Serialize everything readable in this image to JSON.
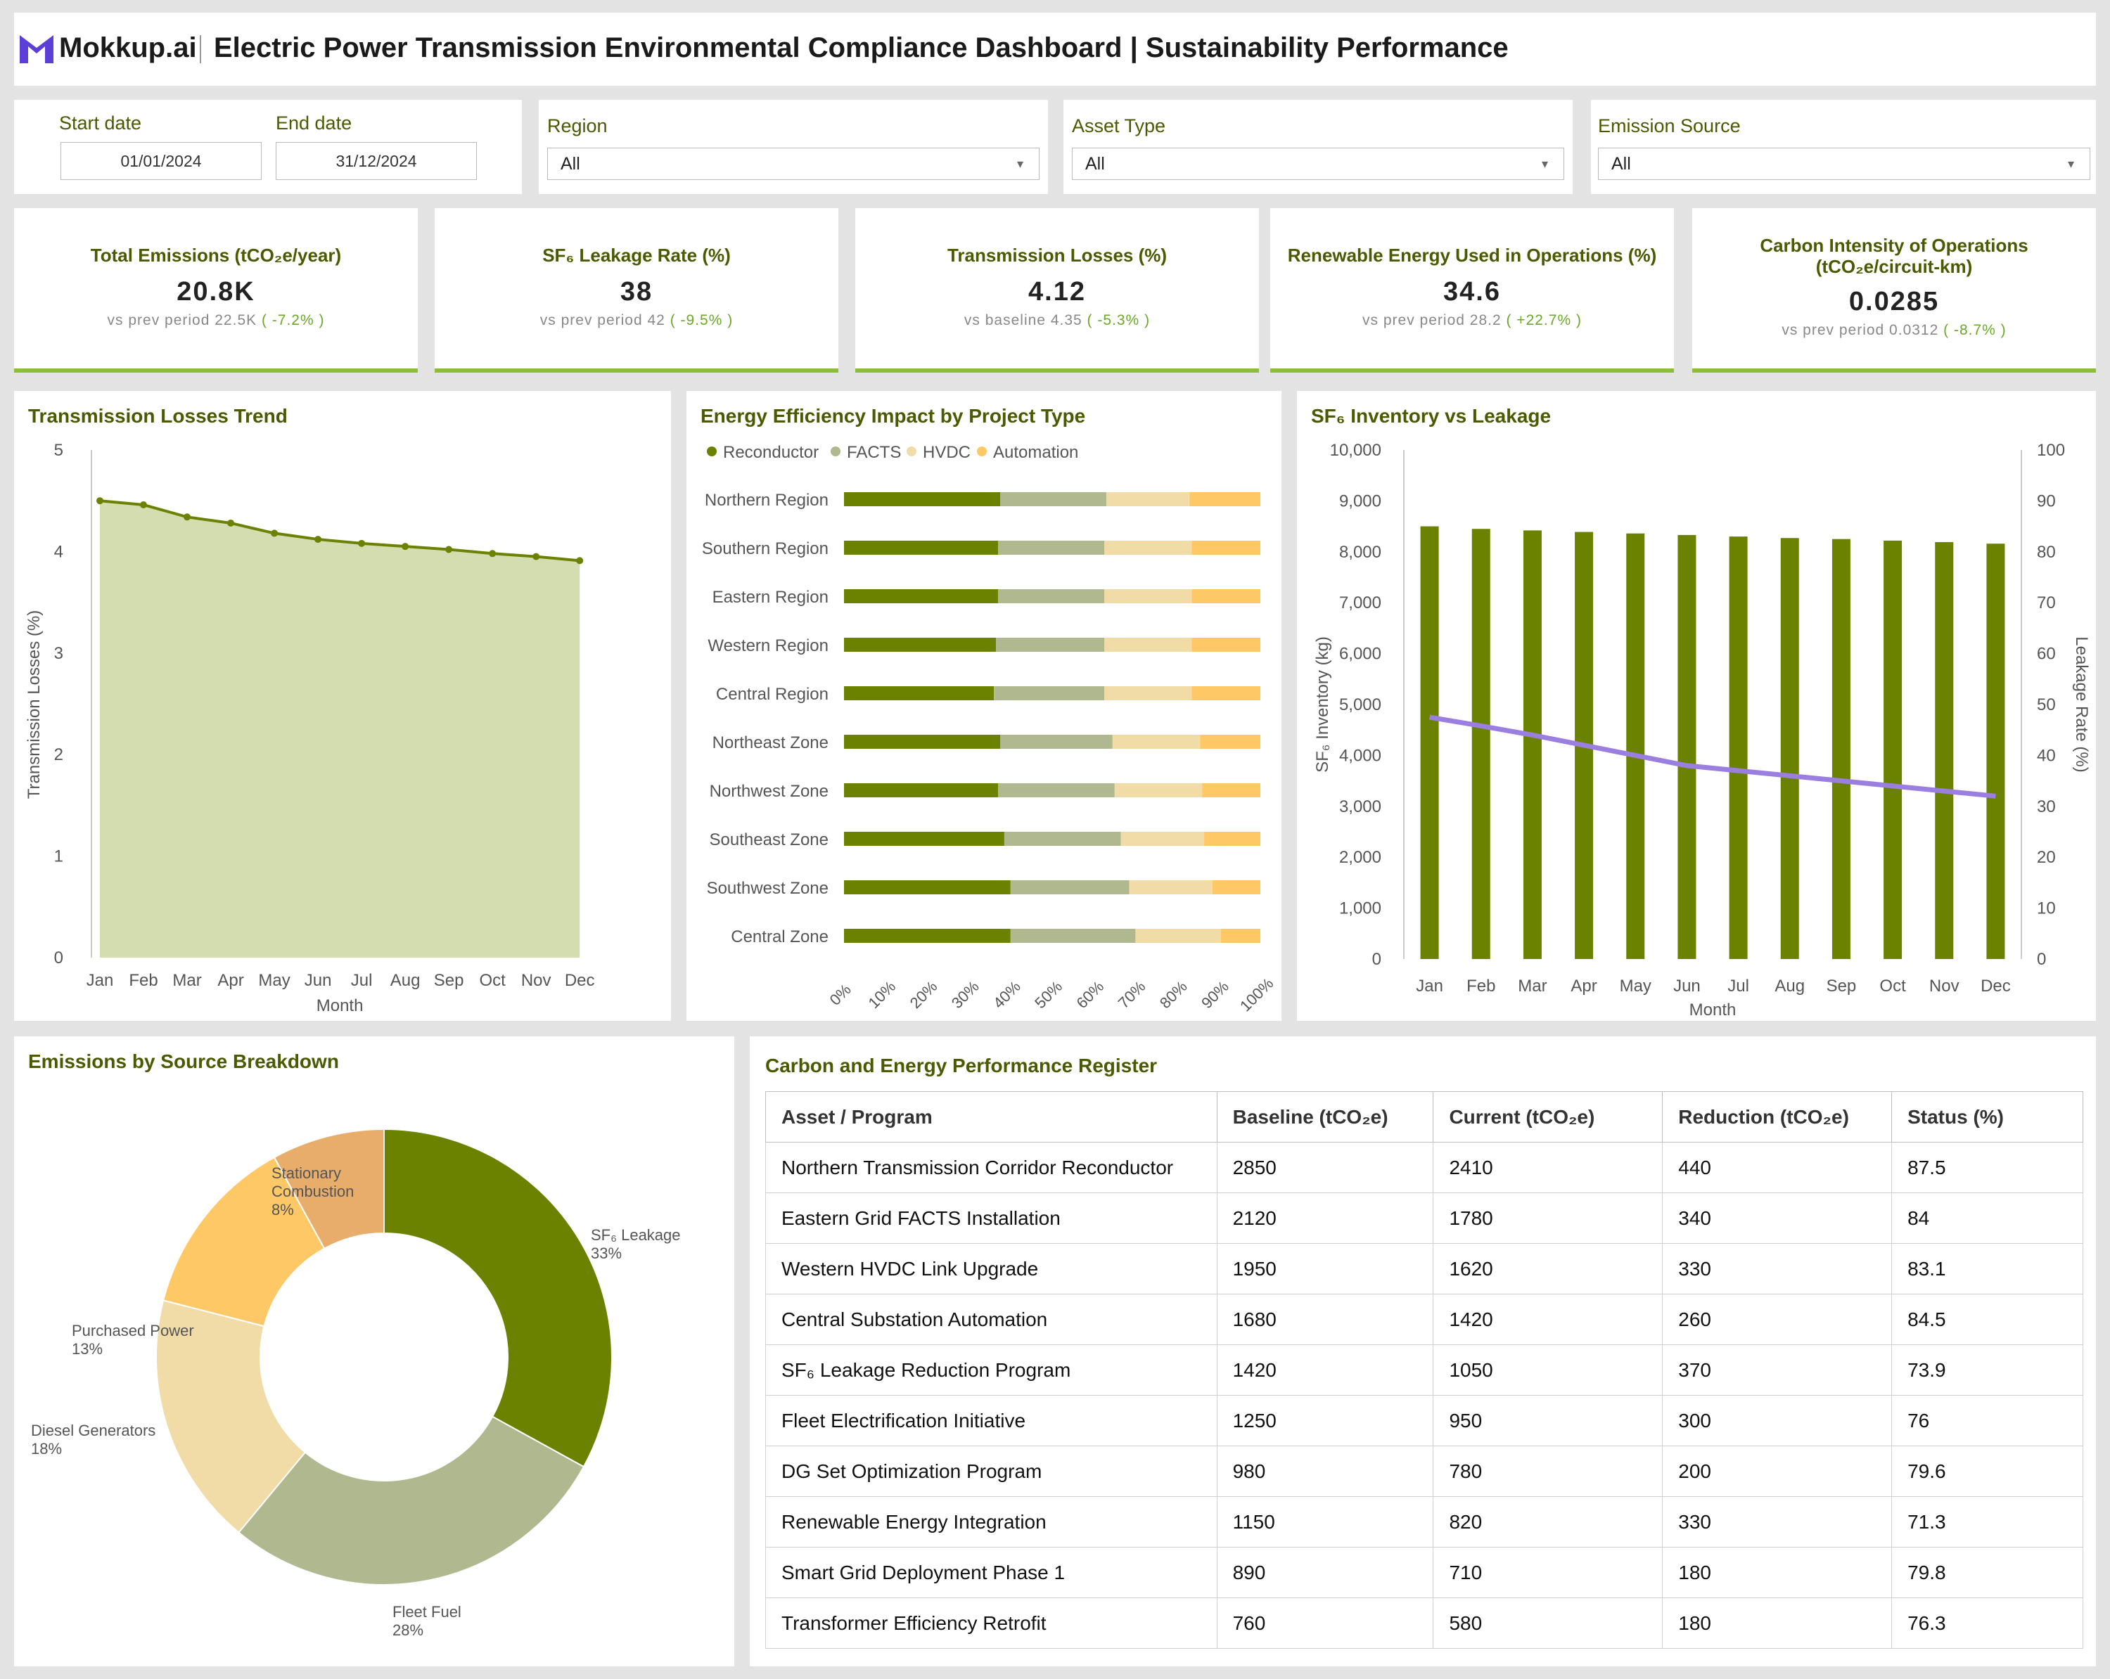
{
  "header": {
    "logo_text": "Mokkup.ai",
    "title": "Electric Power Transmission Environmental Compliance Dashboard | Sustainability Performance"
  },
  "filters": {
    "start_date_label": "Start date",
    "start_date": "01/01/2024",
    "end_date_label": "End date",
    "end_date": "31/12/2024",
    "region_label": "Region",
    "region_value": "All",
    "asset_label": "Asset Type",
    "asset_value": "All",
    "emission_label": "Emission Source",
    "emission_value": "All"
  },
  "kpis": [
    {
      "title": "Total Emissions (tCO₂e/year)",
      "value": "20.8K",
      "compare": "vs prev period 22.5K",
      "delta": "( -7.2% )"
    },
    {
      "title": "SF₆ Leakage Rate (%)",
      "value": "38",
      "compare": "vs prev period 42",
      "delta": "( -9.5% )"
    },
    {
      "title": "Transmission Losses (%)",
      "value": "4.12",
      "compare": "vs baseline 4.35",
      "delta": "( -5.3% )"
    },
    {
      "title": "Renewable Energy Used in Operations (%)",
      "value": "34.6",
      "compare": "vs prev period 28.2",
      "delta": "( +22.7% )"
    },
    {
      "title": "Carbon Intensity of Operations (tCO₂e/circuit-km)",
      "value": "0.0285",
      "compare": "vs prev period 0.0312",
      "delta": "( -8.7% )"
    }
  ],
  "colors": {
    "olive": "#6b8200",
    "sage": "#b0b890",
    "wheat": "#f1dca8",
    "amber": "#ffc866",
    "tan": "#e8ad6a",
    "area": "#d3ddb0",
    "purple": "#9b7fe0",
    "kpi_bar": "#8dbb3a"
  },
  "chart_data": [
    {
      "type": "area",
      "title": "Transmission Losses Trend",
      "xlabel": "Month",
      "ylabel": "Transmission Losses (%)",
      "categories": [
        "Jan",
        "Feb",
        "Mar",
        "Apr",
        "May",
        "Jun",
        "Jul",
        "Aug",
        "Sep",
        "Oct",
        "Nov",
        "Dec"
      ],
      "values": [
        4.5,
        4.46,
        4.34,
        4.28,
        4.18,
        4.12,
        4.08,
        4.05,
        4.02,
        3.98,
        3.95,
        3.91
      ],
      "ylim": [
        0,
        5
      ],
      "yticks": [
        "0",
        "1",
        "2",
        "3",
        "4",
        "5"
      ]
    },
    {
      "type": "bar",
      "orientation": "horizontal-stacked-100",
      "title": "Energy Efficiency Impact by Project Type",
      "categories": [
        "Northern Region",
        "Southern Region",
        "Eastern Region",
        "Western Region",
        "Central Region",
        "Northeast Zone",
        "Northwest Zone",
        "Southeast Zone",
        "Southwest Zone",
        "Central Zone"
      ],
      "series": [
        {
          "name": "Reconductor",
          "values": [
            37.5,
            37,
            37,
            36.5,
            36,
            37.5,
            37,
            38.5,
            40,
            40
          ]
        },
        {
          "name": "FACTS",
          "values": [
            25.5,
            25.5,
            25.5,
            26,
            26.5,
            27,
            28,
            28,
            28.5,
            30
          ]
        },
        {
          "name": "HVDC",
          "values": [
            20,
            21,
            21,
            21,
            21,
            21,
            21,
            20,
            20,
            20.5
          ]
        },
        {
          "name": "Automation",
          "values": [
            17,
            16.5,
            16.5,
            16.5,
            16.5,
            14.5,
            14,
            13.5,
            11.5,
            9.5
          ]
        }
      ],
      "xticks": [
        "0%",
        "10%",
        "20%",
        "30%",
        "40%",
        "50%",
        "60%",
        "70%",
        "80%",
        "90%",
        "100%"
      ],
      "legend": "top-left"
    },
    {
      "type": "bar",
      "title": "SF₆ Inventory vs Leakage",
      "xlabel": "Month",
      "ylabel": "SF₆ Inventory (kg)",
      "y2label": "Leakage Rate (%)",
      "categories": [
        "Jan",
        "Feb",
        "Mar",
        "Apr",
        "May",
        "Jun",
        "Jul",
        "Aug",
        "Sep",
        "Oct",
        "Nov",
        "Dec"
      ],
      "series": [
        {
          "type": "bar",
          "axis": "left",
          "values": [
            8500,
            8450,
            8420,
            8390,
            8360,
            8330,
            8300,
            8270,
            8250,
            8220,
            8190,
            8160
          ]
        },
        {
          "type": "line",
          "axis": "right",
          "values": [
            47.5,
            45.8,
            44,
            42,
            40,
            38,
            37,
            36,
            35,
            34,
            33,
            32
          ]
        }
      ],
      "ylim": [
        0,
        10000
      ],
      "y2lim": [
        0,
        100
      ],
      "yticks": [
        "0",
        "1,000",
        "2,000",
        "3,000",
        "4,000",
        "5,000",
        "6,000",
        "7,000",
        "8,000",
        "9,000",
        "10,000"
      ],
      "y2ticks": [
        "0",
        "10",
        "20",
        "30",
        "40",
        "50",
        "60",
        "70",
        "80",
        "90",
        "100"
      ]
    },
    {
      "type": "pie",
      "title": "Emissions by Source Breakdown",
      "slices": [
        {
          "label": "SF₆ Leakage",
          "value": 33,
          "pct": "33%"
        },
        {
          "label": "Fleet Fuel",
          "value": 28,
          "pct": "28%"
        },
        {
          "label": "Diesel Generators",
          "value": 18,
          "pct": "18%"
        },
        {
          "label": "Purchased Power",
          "value": 13,
          "pct": "13%"
        },
        {
          "label": "Stationary Combustion",
          "value": 8,
          "pct": "8%"
        }
      ]
    }
  ],
  "register": {
    "title": "Carbon and Energy Performance Register",
    "headers": [
      "Asset / Program",
      "Baseline (tCO₂e)",
      "Current (tCO₂e)",
      "Reduction (tCO₂e)",
      "Status (%)"
    ],
    "rows": [
      [
        "Northern Transmission Corridor Reconductor",
        "2850",
        "2410",
        "440",
        "87.5"
      ],
      [
        "Eastern Grid FACTS Installation",
        "2120",
        "1780",
        "340",
        "84"
      ],
      [
        "Western HVDC Link Upgrade",
        "1950",
        "1620",
        "330",
        "83.1"
      ],
      [
        "Central Substation Automation",
        "1680",
        "1420",
        "260",
        "84.5"
      ],
      [
        "SF₆ Leakage Reduction Program",
        "1420",
        "1050",
        "370",
        "73.9"
      ],
      [
        "Fleet Electrification Initiative",
        "1250",
        "950",
        "300",
        "76"
      ],
      [
        "DG Set Optimization Program",
        "980",
        "780",
        "200",
        "79.6"
      ],
      [
        "Renewable Energy Integration",
        "1150",
        "820",
        "330",
        "71.3"
      ],
      [
        "Smart Grid Deployment Phase 1",
        "890",
        "710",
        "180",
        "79.8"
      ],
      [
        "Transformer Efficiency Retrofit",
        "760",
        "580",
        "180",
        "76.3"
      ]
    ]
  }
}
